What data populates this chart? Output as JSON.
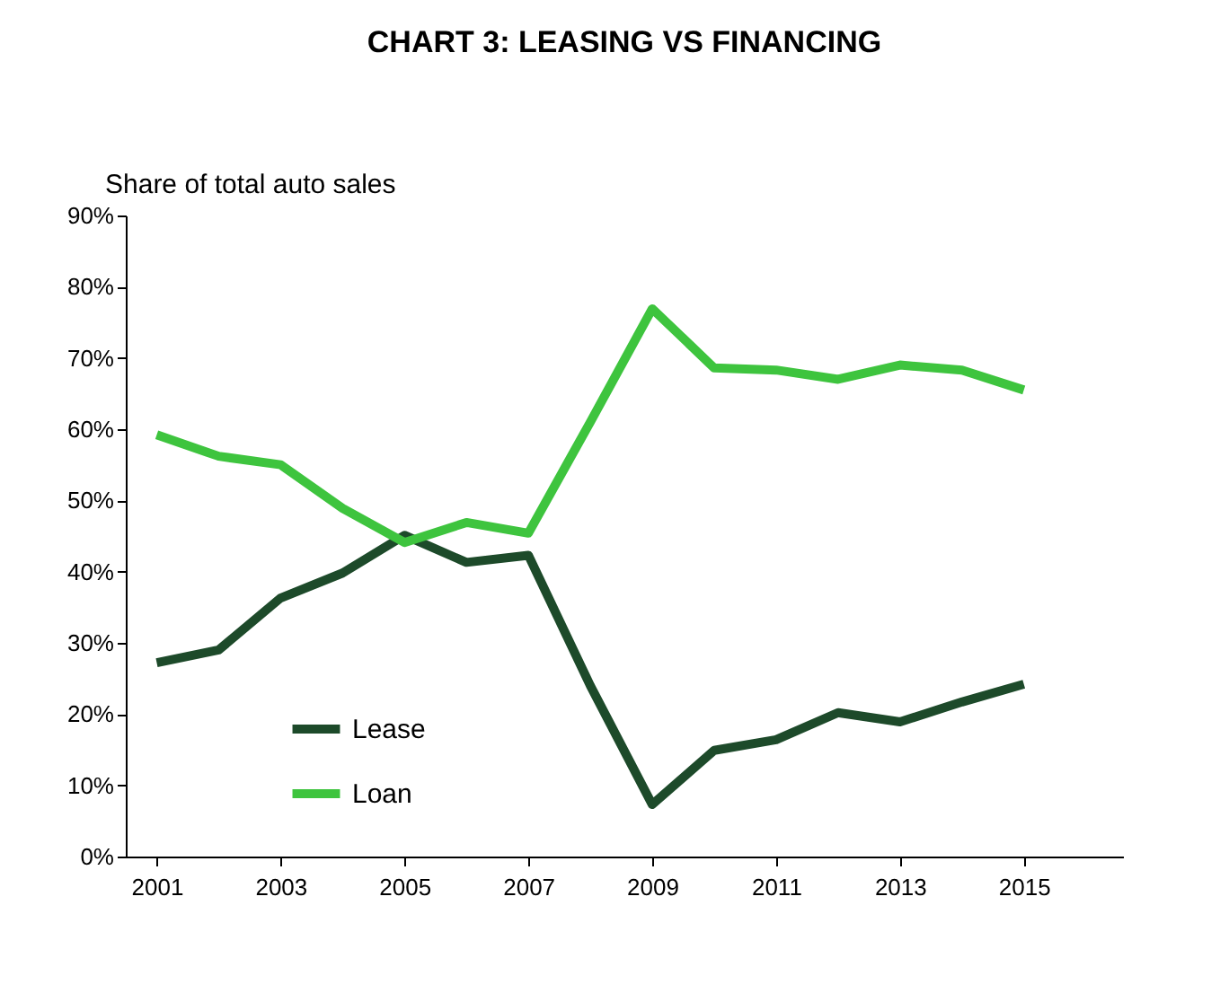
{
  "chart_data": {
    "type": "line",
    "title": "CHART 3: LEASING VS FINANCING",
    "ylabel": "Share of total auto sales",
    "x": [
      2001,
      2002,
      2003,
      2004,
      2005,
      2006,
      2007,
      2008,
      2009,
      2010,
      2011,
      2012,
      2013,
      2014,
      2015
    ],
    "series": [
      {
        "name": "Lease",
        "color": "#1d4a2a",
        "values": [
          27.2,
          29,
          36.3,
          39.8,
          45.1,
          41.3,
          42.3,
          24,
          7.3,
          14.9,
          16.4,
          20.2,
          18.9,
          21.7,
          24.2
        ]
      },
      {
        "name": "Loan",
        "color": "#3ec43e",
        "values": [
          59.2,
          56.2,
          55,
          48.9,
          44.1,
          46.9,
          45.4,
          61,
          76.9,
          68.6,
          68.3,
          67,
          69,
          68.3,
          65.5
        ]
      }
    ],
    "xlim": [
      2000.5,
      2016.6
    ],
    "xticks": [
      2001,
      2003,
      2005,
      2007,
      2009,
      2011,
      2013,
      2015
    ],
    "ylim": [
      0,
      90
    ],
    "yticks": [
      {
        "value": 0,
        "label": "0%"
      },
      {
        "value": 10,
        "label": "10%"
      },
      {
        "value": 20,
        "label": "20%"
      },
      {
        "value": 30,
        "label": "30%"
      },
      {
        "value": 40,
        "label": "40%"
      },
      {
        "value": 50,
        "label": "50%"
      },
      {
        "value": 60,
        "label": "60%"
      },
      {
        "value": 70,
        "label": "70%"
      },
      {
        "value": 80,
        "label": "80%"
      },
      {
        "value": 90,
        "label": "90%"
      }
    ],
    "grid": false,
    "legend": "bottom left",
    "marker": "none",
    "line_style": "solid"
  }
}
